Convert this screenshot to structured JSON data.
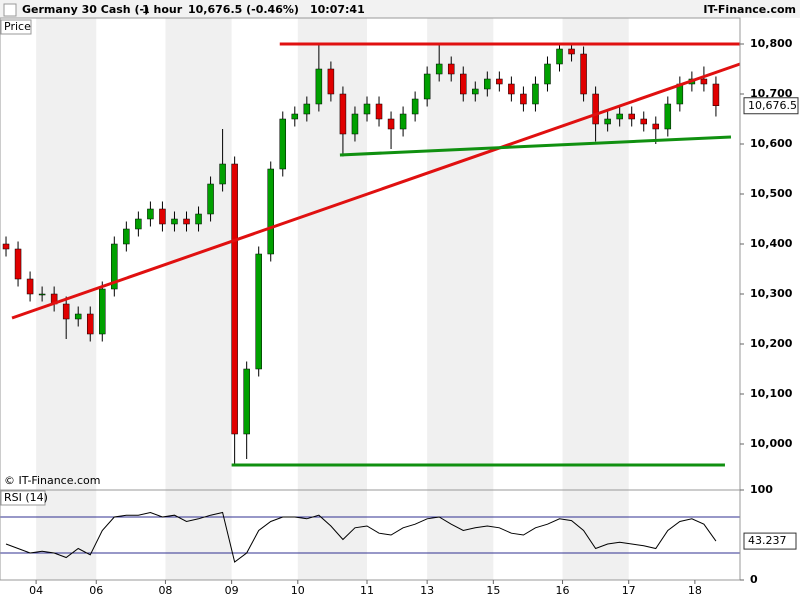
{
  "header": {
    "instrument": "Germany 30 Cash (-)",
    "period": "1 hour",
    "quote": "10,676.5 (-0.46%)",
    "time": "10:07:41",
    "brand": "IT-Finance.com"
  },
  "chart_data": [
    {
      "type": "candlestick",
      "panel_label": "Price",
      "watermark": "© IT-Finance.com",
      "xlim": [
        0,
        246
      ],
      "xticks": [
        {
          "value": 12,
          "label": "04"
        },
        {
          "value": 32,
          "label": "06"
        },
        {
          "value": 55,
          "label": "08"
        },
        {
          "value": 77,
          "label": "09"
        },
        {
          "value": 99,
          "label": "10"
        },
        {
          "value": 122,
          "label": "11"
        },
        {
          "value": 142,
          "label": "13"
        },
        {
          "value": 164,
          "label": "15"
        },
        {
          "value": 187,
          "label": "16"
        },
        {
          "value": 209,
          "label": "17"
        },
        {
          "value": 231,
          "label": "18"
        }
      ],
      "ylim": [
        9908,
        10852
      ],
      "yticks": [
        {
          "value": 10000,
          "label": "10,000"
        },
        {
          "value": 10100,
          "label": "10,100"
        },
        {
          "value": 10200,
          "label": "10,200"
        },
        {
          "value": 10300,
          "label": "10,300"
        },
        {
          "value": 10400,
          "label": "10,400"
        },
        {
          "value": 10500,
          "label": "10,500"
        },
        {
          "value": 10600,
          "label": "10,600"
        },
        {
          "value": 10700,
          "label": "10,700"
        },
        {
          "value": 10800,
          "label": "10,800"
        }
      ],
      "up_color": "#00a000",
      "down_color": "#e00000",
      "last": {
        "value": 10676.5,
        "label": "10,676.5"
      },
      "x": [
        2,
        6,
        10,
        14,
        18,
        22,
        26,
        30,
        34,
        38,
        42,
        46,
        50,
        54,
        58,
        62,
        66,
        70,
        74,
        78,
        82,
        86,
        90,
        94,
        98,
        102,
        106,
        110,
        114,
        118,
        122,
        126,
        130,
        134,
        138,
        142,
        146,
        150,
        154,
        158,
        162,
        166,
        170,
        174,
        178,
        182,
        186,
        190,
        194,
        198,
        202,
        206,
        210,
        214,
        218,
        222,
        226,
        230,
        234,
        238
      ],
      "open": [
        10400,
        10390,
        10330,
        10300,
        10300,
        10280,
        10250,
        10260,
        10220,
        10310,
        10400,
        10430,
        10450,
        10470,
        10440,
        10450,
        10440,
        10460,
        10520,
        10560,
        10020,
        10150,
        10380,
        10550,
        10650,
        10660,
        10680,
        10750,
        10700,
        10620,
        10660,
        10680,
        10650,
        10630,
        10660,
        10690,
        10740,
        10760,
        10740,
        10700,
        10710,
        10730,
        10720,
        10700,
        10680,
        10720,
        10760,
        10790,
        10780,
        10700,
        10640,
        10650,
        10660,
        10650,
        10640,
        10630,
        10680,
        10720,
        10730,
        10720
      ],
      "high": [
        10415,
        10405,
        10345,
        10315,
        10315,
        10295,
        10275,
        10275,
        10325,
        10415,
        10445,
        10465,
        10485,
        10485,
        10465,
        10465,
        10475,
        10535,
        10630,
        10575,
        10165,
        10395,
        10565,
        10665,
        10675,
        10695,
        10800,
        10765,
        10715,
        10675,
        10695,
        10695,
        10665,
        10675,
        10705,
        10755,
        10800,
        10775,
        10755,
        10725,
        10745,
        10745,
        10735,
        10715,
        10735,
        10775,
        10800,
        10800,
        10795,
        10715,
        10665,
        10675,
        10675,
        10665,
        10655,
        10695,
        10735,
        10745,
        10755,
        10735
      ],
      "low": [
        10375,
        10315,
        10285,
        10285,
        10265,
        10210,
        10235,
        10205,
        10205,
        10295,
        10385,
        10415,
        10435,
        10425,
        10425,
        10425,
        10425,
        10445,
        10505,
        9960,
        9970,
        10135,
        10365,
        10535,
        10635,
        10645,
        10665,
        10685,
        10575,
        10605,
        10645,
        10635,
        10590,
        10615,
        10645,
        10675,
        10725,
        10725,
        10685,
        10685,
        10695,
        10705,
        10685,
        10665,
        10665,
        10705,
        10745,
        10765,
        10685,
        10605,
        10625,
        10635,
        10635,
        10625,
        10600,
        10615,
        10665,
        10705,
        10705,
        10655
      ],
      "close": [
        10390,
        10330,
        10300,
        10300,
        10280,
        10250,
        10260,
        10220,
        10310,
        10400,
        10430,
        10450,
        10470,
        10440,
        10450,
        10440,
        10460,
        10520,
        10560,
        10020,
        10150,
        10380,
        10550,
        10650,
        10660,
        10680,
        10750,
        10700,
        10620,
        10660,
        10680,
        10650,
        10630,
        10660,
        10690,
        10740,
        10760,
        10740,
        10700,
        10710,
        10730,
        10720,
        10700,
        10680,
        10720,
        10760,
        10790,
        10780,
        10700,
        10640,
        10650,
        10660,
        10650,
        10640,
        10630,
        10680,
        10720,
        10730,
        10720,
        10676.5
      ],
      "trendlines": [
        {
          "color": "#e01010",
          "x": [
            93,
            246
          ],
          "y": [
            10800,
            10800
          ]
        },
        {
          "color": "#e01010",
          "x": [
            4,
            246
          ],
          "y": [
            10252,
            10760
          ]
        },
        {
          "color": "#109010",
          "x": [
            113,
            243
          ],
          "y": [
            10578,
            10614
          ]
        },
        {
          "color": "#109010",
          "x": [
            77,
            241
          ],
          "y": [
            9958,
            9958
          ]
        }
      ]
    },
    {
      "type": "line",
      "panel_label": "RSI (14)",
      "color": "#000000",
      "xlim": [
        0,
        246
      ],
      "ylim": [
        0,
        100
      ],
      "yticks": [
        0,
        100
      ],
      "levels": [
        30,
        70
      ],
      "level_color": "#303090",
      "last": 43.237,
      "x": [
        2,
        6,
        10,
        14,
        18,
        22,
        26,
        30,
        34,
        38,
        42,
        46,
        50,
        54,
        58,
        62,
        66,
        70,
        74,
        78,
        82,
        86,
        90,
        94,
        98,
        102,
        106,
        110,
        114,
        118,
        122,
        126,
        130,
        134,
        138,
        142,
        146,
        150,
        154,
        158,
        162,
        166,
        170,
        174,
        178,
        182,
        186,
        190,
        194,
        198,
        202,
        206,
        210,
        214,
        218,
        222,
        226,
        230,
        234,
        238
      ],
      "values": [
        40,
        35,
        30,
        32,
        30,
        25,
        35,
        28,
        55,
        70,
        72,
        72,
        75,
        70,
        72,
        65,
        68,
        72,
        75,
        20,
        30,
        55,
        65,
        70,
        70,
        68,
        72,
        60,
        45,
        58,
        60,
        52,
        50,
        58,
        62,
        68,
        70,
        62,
        55,
        58,
        60,
        58,
        52,
        50,
        58,
        62,
        68,
        66,
        55,
        35,
        40,
        42,
        40,
        38,
        35,
        55,
        65,
        68,
        62,
        43.237
      ]
    }
  ]
}
